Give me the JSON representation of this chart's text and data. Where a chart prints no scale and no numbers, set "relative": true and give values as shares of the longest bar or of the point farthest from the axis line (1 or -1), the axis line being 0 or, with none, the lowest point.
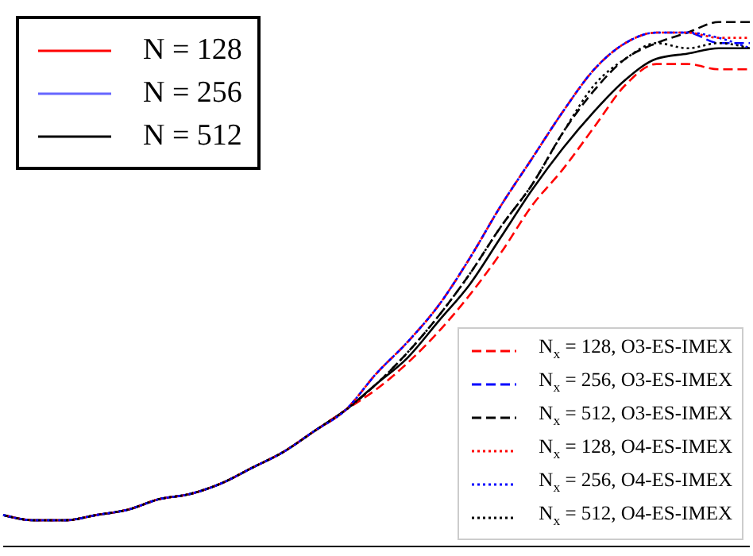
{
  "chart_data": {
    "type": "line",
    "relative": true,
    "legend": "top left",
    "categories": [
      null,
      null,
      null,
      null,
      null,
      null,
      null,
      null,
      null,
      null,
      null,
      null,
      null,
      null,
      null,
      null,
      null,
      null,
      null,
      null,
      null,
      null,
      null,
      null,
      null
    ],
    "series": [
      {
        "name": "N = 128",
        "color": "#ff0000",
        "line_style": "solid",
        "values": [
          null,
          null,
          null,
          null,
          null,
          null,
          null,
          null,
          null,
          null,
          null,
          null,
          null,
          null,
          null,
          null,
          null,
          null,
          null,
          null,
          null,
          null,
          null,
          null,
          null
        ]
      },
      {
        "name": "N = 256",
        "color": "#6666ff",
        "line_style": "solid",
        "values": [
          null,
          null,
          null,
          null,
          null,
          null,
          null,
          null,
          null,
          null,
          null,
          null,
          null,
          null,
          null,
          null,
          null,
          null,
          null,
          null,
          null,
          null,
          null,
          null,
          null
        ]
      },
      {
        "name": "N = 512",
        "color": "#000000",
        "line_style": "solid",
        "values": [
          0.06,
          0.05,
          0.05,
          0.06,
          0.07,
          0.09,
          0.1,
          0.12,
          0.15,
          0.18,
          0.22,
          0.26,
          0.31,
          0.36,
          0.43,
          0.5,
          0.59,
          0.68,
          0.76,
          0.83,
          0.89,
          0.93,
          0.94,
          0.95,
          0.95
        ]
      },
      {
        "name": "N$_{x}$ = 128, O3-ES-IMEX",
        "color": "#ff0000",
        "line_style": "dashed",
        "values": [
          0.06,
          0.05,
          0.05,
          0.06,
          0.07,
          0.09,
          0.1,
          0.12,
          0.15,
          0.18,
          0.22,
          0.26,
          0.3,
          0.35,
          0.41,
          0.48,
          0.56,
          0.65,
          0.72,
          0.8,
          0.88,
          0.92,
          0.92,
          0.91,
          0.91
        ]
      },
      {
        "name": "N$_{x}$ = 256, O3-ES-IMEX",
        "color": "#0000ff",
        "line_style": "dashed",
        "values": [
          0.06,
          0.05,
          0.05,
          0.06,
          0.07,
          0.09,
          0.1,
          0.12,
          0.15,
          0.18,
          0.22,
          0.26,
          0.33,
          0.39,
          0.46,
          0.55,
          0.65,
          0.74,
          0.83,
          0.91,
          0.96,
          0.98,
          0.98,
          0.96,
          0.96
        ]
      },
      {
        "name": "N$_{x}$ = 512, O3-ES-IMEX",
        "color": "#000000",
        "line_style": "dashed",
        "values": [
          0.06,
          0.05,
          0.05,
          0.06,
          0.07,
          0.09,
          0.1,
          0.12,
          0.15,
          0.18,
          0.22,
          0.26,
          0.31,
          0.37,
          0.44,
          0.52,
          0.61,
          0.69,
          0.79,
          0.87,
          0.93,
          0.96,
          0.98,
          1.0,
          1.0
        ]
      },
      {
        "name": "N$_{x}$ = 128, O4-ES-IMEX",
        "color": "#ff0000",
        "line_style": "dotted",
        "values": [
          0.06,
          0.05,
          0.05,
          0.06,
          0.07,
          0.09,
          0.1,
          0.12,
          0.15,
          0.18,
          0.22,
          0.26,
          0.33,
          0.39,
          0.46,
          0.55,
          0.65,
          0.74,
          0.83,
          0.91,
          0.96,
          0.98,
          0.98,
          0.97,
          0.97
        ]
      },
      {
        "name": "N$_{x}$ = 256, O4-ES-IMEX",
        "color": "#0000ff",
        "line_style": "dotted",
        "values": [
          0.06,
          0.05,
          0.05,
          0.06,
          0.07,
          0.09,
          0.1,
          0.12,
          0.15,
          0.18,
          0.22,
          0.26,
          0.33,
          0.39,
          0.46,
          0.55,
          0.65,
          0.74,
          0.83,
          0.91,
          0.96,
          0.98,
          0.98,
          0.97,
          0.95
        ]
      },
      {
        "name": "N$_{x}$ = 512, O4-ES-IMEX",
        "color": "#000000",
        "line_style": "dotted",
        "values": [
          0.06,
          0.05,
          0.05,
          0.06,
          0.07,
          0.09,
          0.1,
          0.12,
          0.15,
          0.18,
          0.22,
          0.26,
          0.31,
          0.37,
          0.44,
          0.52,
          0.61,
          0.69,
          0.79,
          0.88,
          0.93,
          0.96,
          0.95,
          0.96,
          0.95
        ]
      }
    ]
  }
}
